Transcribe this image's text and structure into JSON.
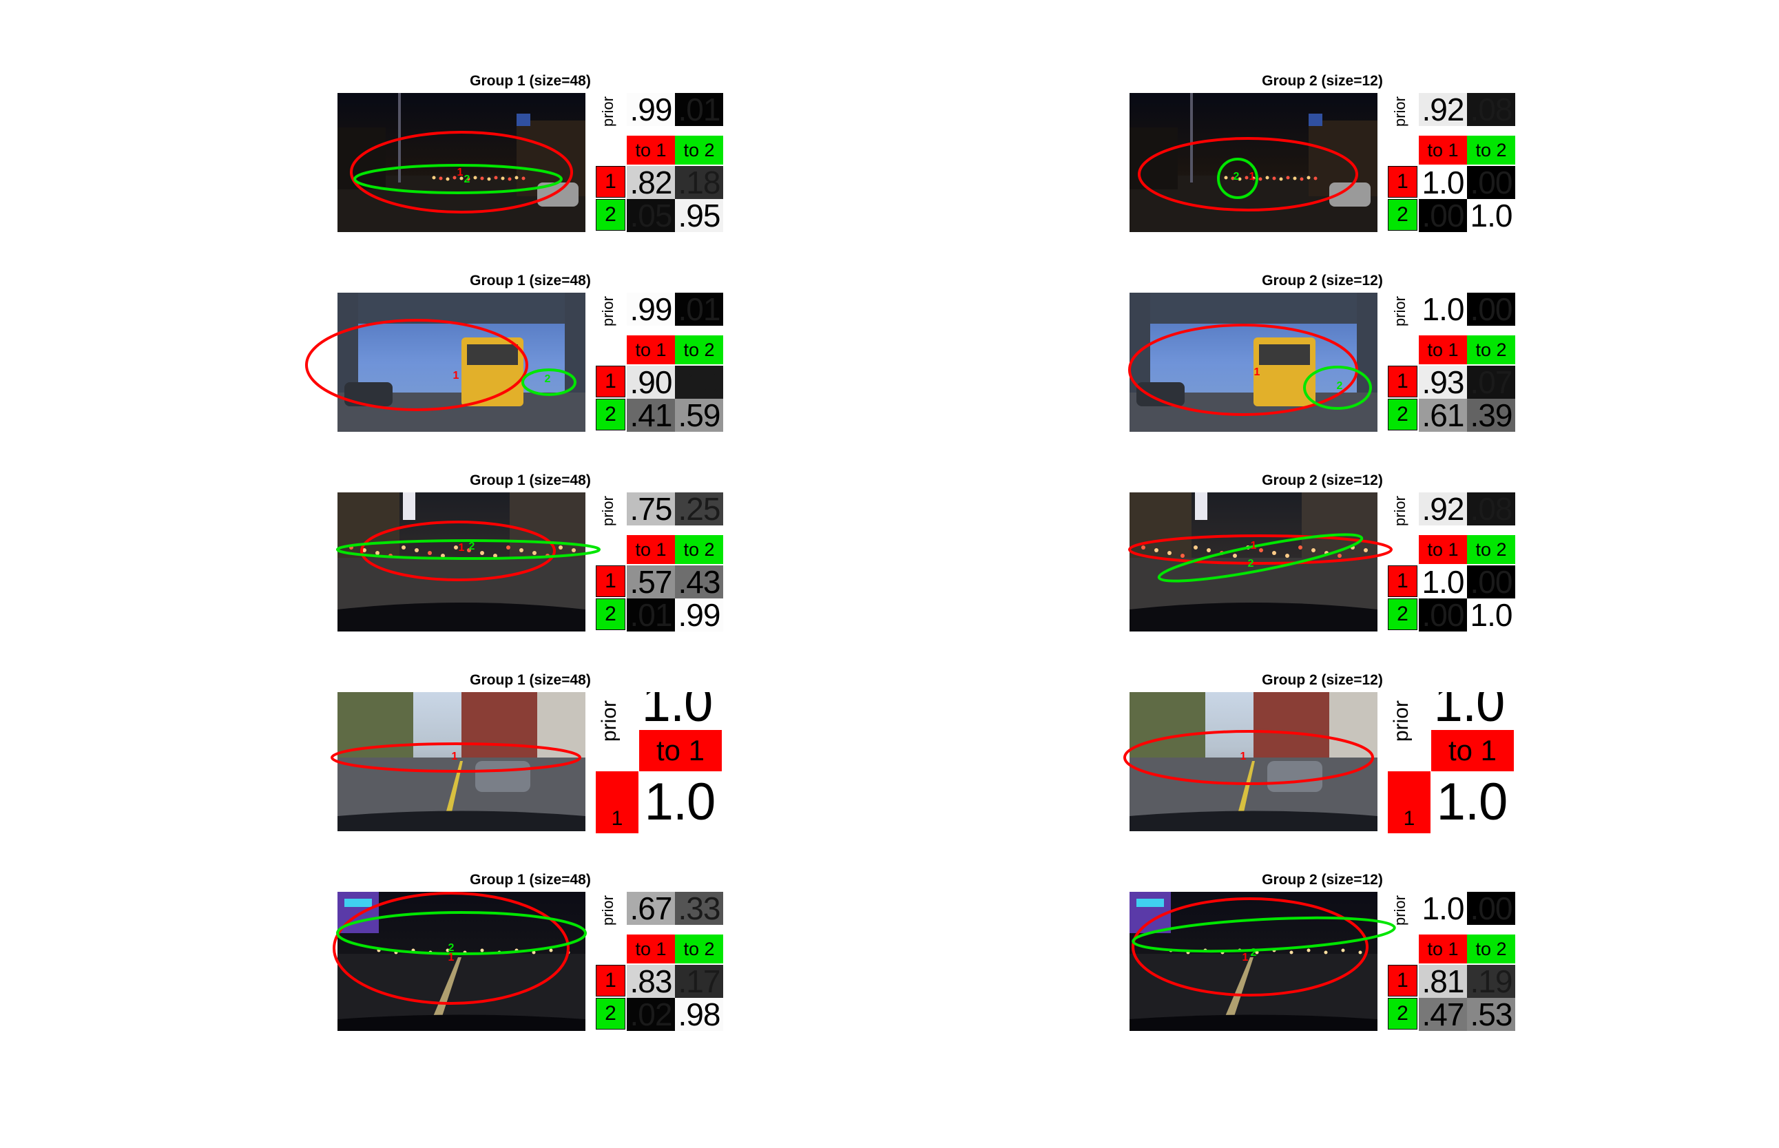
{
  "colors": {
    "state1": "#ff0000",
    "state2": "#00e600"
  },
  "figure": {
    "columns": [
      {
        "title": "Group 1 (size=48)",
        "rows": [
          {
            "scene": "night",
            "prior": [
              ".99",
              ".01"
            ],
            "prior_levels": [
              0.99,
              0.01
            ],
            "matrix": [
              [
                ".82",
                ".18"
              ],
              [
                ".05",
                ".95"
              ]
            ],
            "matrix_levels": [
              [
                0.82,
                0.18
              ],
              [
                0.05,
                0.95
              ]
            ]
          },
          {
            "scene": "bus",
            "prior": [
              ".99",
              ".01"
            ],
            "prior_levels": [
              0.99,
              0.01
            ],
            "matrix": [
              [
                ".90",
                ".10"
              ],
              [
                ".41",
                ".59"
              ]
            ],
            "matrix_levels": [
              [
                0.9,
                0.1
              ],
              [
                0.41,
                0.59
              ]
            ]
          },
          {
            "scene": "city",
            "prior": [
              ".75",
              ".25"
            ],
            "prior_levels": [
              0.75,
              0.25
            ],
            "matrix": [
              [
                ".57",
                ".43"
              ],
              [
                ".01",
                ".99"
              ]
            ],
            "matrix_levels": [
              [
                0.57,
                0.43
              ],
              [
                0.01,
                0.99
              ]
            ]
          },
          {
            "scene": "street",
            "single": true,
            "prior": [
              "1.0"
            ],
            "prior_levels": [
              1.0
            ],
            "matrix": [
              [
                "1.0"
              ]
            ],
            "matrix_levels": [
              [
                1.0
              ]
            ]
          },
          {
            "scene": "nightroad",
            "prior": [
              ".67",
              ".33"
            ],
            "prior_levels": [
              0.67,
              0.33
            ],
            "matrix": [
              [
                ".83",
                ".17"
              ],
              [
                ".02",
                ".98"
              ]
            ],
            "matrix_levels": [
              [
                0.83,
                0.17
              ],
              [
                0.02,
                0.98
              ]
            ]
          }
        ]
      },
      {
        "title": "Group 2 (size=12)",
        "rows": [
          {
            "scene": "night",
            "prior": [
              ".92",
              ".08"
            ],
            "prior_levels": [
              0.92,
              0.08
            ],
            "matrix": [
              [
                "1.0",
                ".00"
              ],
              [
                ".00",
                "1.0"
              ]
            ],
            "matrix_levels": [
              [
                1.0,
                0.0
              ],
              [
                0.0,
                1.0
              ]
            ]
          },
          {
            "scene": "bus",
            "prior": [
              "1.0",
              ".00"
            ],
            "prior_levels": [
              1.0,
              0.0
            ],
            "matrix": [
              [
                ".93",
                ".07"
              ],
              [
                ".61",
                ".39"
              ]
            ],
            "matrix_levels": [
              [
                0.93,
                0.07
              ],
              [
                0.61,
                0.39
              ]
            ]
          },
          {
            "scene": "city",
            "prior": [
              ".92",
              ".08"
            ],
            "prior_levels": [
              0.92,
              0.08
            ],
            "matrix": [
              [
                "1.0",
                ".00"
              ],
              [
                ".00",
                "1.0"
              ]
            ],
            "matrix_levels": [
              [
                1.0,
                0.0
              ],
              [
                0.0,
                1.0
              ]
            ]
          },
          {
            "scene": "street",
            "single": true,
            "prior": [
              "1.0"
            ],
            "prior_levels": [
              1.0
            ],
            "matrix": [
              [
                "1.0"
              ]
            ],
            "matrix_levels": [
              [
                1.0
              ]
            ]
          },
          {
            "scene": "nightroad",
            "prior": [
              "1.0",
              ".00"
            ],
            "prior_levels": [
              1.0,
              0.0
            ],
            "matrix": [
              [
                ".81",
                ".19"
              ],
              [
                ".47",
                ".53"
              ]
            ],
            "matrix_levels": [
              [
                0.81,
                0.19
              ],
              [
                0.47,
                0.53
              ]
            ]
          }
        ]
      }
    ],
    "labels": {
      "prior": "prior",
      "to1": "to 1",
      "to2": "to 2",
      "s1": "1",
      "s2": "2"
    }
  }
}
